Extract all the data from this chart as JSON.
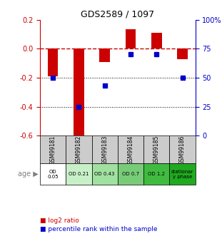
{
  "title": "GDS2589 / 1097",
  "samples": [
    "GSM99181",
    "GSM99182",
    "GSM99183",
    "GSM99184",
    "GSM99185",
    "GSM99186"
  ],
  "log2_ratio": [
    -0.19,
    -0.62,
    -0.09,
    0.135,
    0.11,
    -0.07
  ],
  "percentile_rank": [
    50,
    25,
    43,
    70,
    70,
    50
  ],
  "log2_ylim": [
    -0.6,
    0.2
  ],
  "percentile_ylim": [
    0,
    100
  ],
  "log2_ticks": [
    0.2,
    0.0,
    -0.2,
    -0.4,
    -0.6
  ],
  "percentile_ticks": [
    100,
    75,
    50,
    25,
    0
  ],
  "row1_labels": [
    "OD\n0.05",
    "OD 0.21",
    "OD 0.43",
    "OD 0.7",
    "OD 1.2",
    "stationar\ny phase"
  ],
  "row1_colors": [
    "#ffffff",
    "#c8f0c8",
    "#a0e0a0",
    "#70cc70",
    "#40bb40",
    "#20aa20"
  ],
  "category_label": "age",
  "bar_color": "#cc0000",
  "dot_color": "#0000cc",
  "bar_width": 0.4,
  "zero_line_color": "#cc0000",
  "dotted_line_color": "#000000",
  "bg_color": "#ffffff"
}
